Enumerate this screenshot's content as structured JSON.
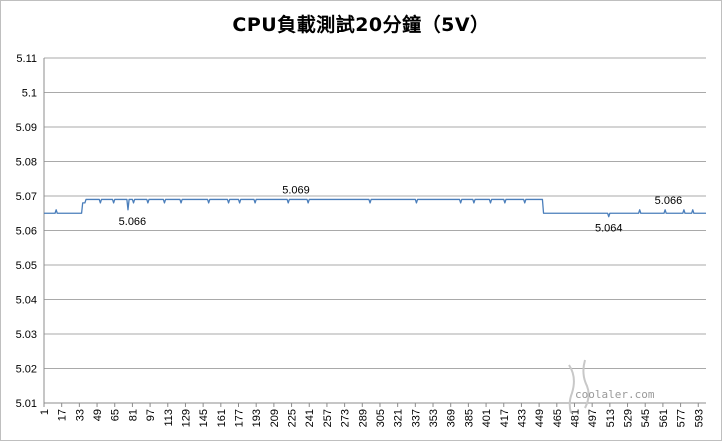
{
  "chart_data": {
    "type": "line",
    "title": "CPU負載測試20分鐘（5V）",
    "xlabel": "",
    "ylabel": "",
    "ylim": [
      5.01,
      5.11
    ],
    "ytick_labels": [
      "5.11",
      "5.1",
      "5.09",
      "5.08",
      "5.07",
      "5.06",
      "5.05",
      "5.04",
      "5.03",
      "5.02",
      "5.01"
    ],
    "xtick_labels": [
      "1",
      "17",
      "33",
      "49",
      "65",
      "81",
      "97",
      "113",
      "129",
      "145",
      "161",
      "177",
      "193",
      "209",
      "225",
      "241",
      "257",
      "273",
      "289",
      "305",
      "321",
      "337",
      "353",
      "369",
      "385",
      "401",
      "417",
      "433",
      "449",
      "465",
      "481",
      "497",
      "513",
      "529",
      "545",
      "561",
      "577",
      "593"
    ],
    "xlim": [
      1,
      600
    ],
    "grid": "horizontal",
    "legend": "none",
    "line_color": "#4a7ebb",
    "segments": [
      {
        "x_start": 1,
        "x_end": 35,
        "value": 5.065
      },
      {
        "x_start": 36,
        "x_end": 38,
        "value": 5.068
      },
      {
        "x_start": 39,
        "x_end": 452,
        "value": 5.069
      },
      {
        "x_start": 453,
        "x_end": 600,
        "value": 5.065
      }
    ],
    "spikes": [
      {
        "x": 12,
        "value": 5.066
      },
      {
        "x": 52,
        "value": 5.068
      },
      {
        "x": 64,
        "value": 5.068
      },
      {
        "x": 77,
        "value": 5.066
      },
      {
        "x": 82,
        "value": 5.068
      },
      {
        "x": 95,
        "value": 5.068
      },
      {
        "x": 110,
        "value": 5.068
      },
      {
        "x": 125,
        "value": 5.068
      },
      {
        "x": 150,
        "value": 5.068
      },
      {
        "x": 168,
        "value": 5.068
      },
      {
        "x": 178,
        "value": 5.068
      },
      {
        "x": 192,
        "value": 5.068
      },
      {
        "x": 222,
        "value": 5.068
      },
      {
        "x": 240,
        "value": 5.068
      },
      {
        "x": 296,
        "value": 5.068
      },
      {
        "x": 338,
        "value": 5.068
      },
      {
        "x": 378,
        "value": 5.068
      },
      {
        "x": 390,
        "value": 5.068
      },
      {
        "x": 405,
        "value": 5.068
      },
      {
        "x": 418,
        "value": 5.068
      },
      {
        "x": 436,
        "value": 5.068
      },
      {
        "x": 512,
        "value": 5.064
      },
      {
        "x": 540,
        "value": 5.066
      },
      {
        "x": 563,
        "value": 5.066
      },
      {
        "x": 580,
        "value": 5.066
      },
      {
        "x": 588,
        "value": 5.066
      }
    ],
    "annotations": [
      {
        "x": 81,
        "value": 5.066,
        "text": "5.066",
        "pos": "below"
      },
      {
        "x": 229,
        "value": 5.069,
        "text": "5.069",
        "pos": "above"
      },
      {
        "x": 512,
        "value": 5.064,
        "text": "5.064",
        "pos": "below"
      },
      {
        "x": 566,
        "value": 5.066,
        "text": "5.066",
        "pos": "above"
      }
    ]
  },
  "watermark": "coolaler.com"
}
